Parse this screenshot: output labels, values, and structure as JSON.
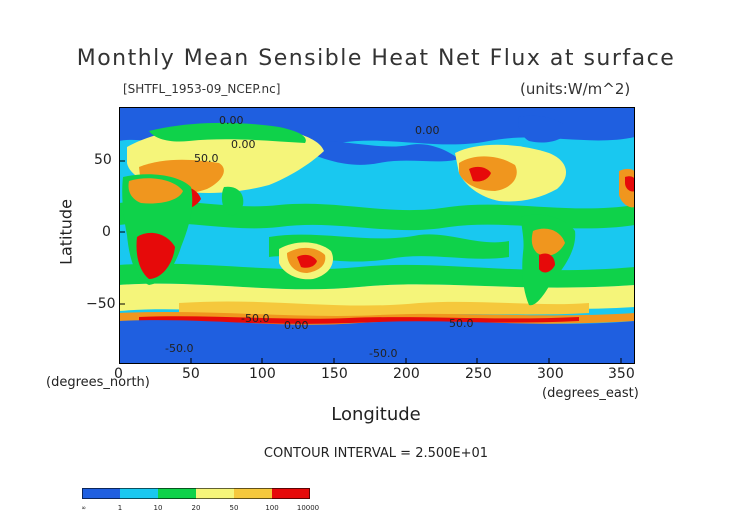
{
  "title": "Monthly Mean Sensible Heat Net Flux at surface",
  "file_label": "[SHTFL_1953-09_NCEP.nc]",
  "units_label": "(units:W/m^2)",
  "y_axis": {
    "label": "Latitude",
    "unit": "(degrees_north)",
    "ticks": [
      "50",
      "0",
      "−50"
    ]
  },
  "x_axis": {
    "label": "Longitude",
    "unit": "(degrees_east)",
    "ticks": [
      "0",
      "50",
      "100",
      "150",
      "200",
      "250",
      "300",
      "350"
    ]
  },
  "contour_interval": "CONTOUR INTERVAL = 2.500E+01",
  "contour_labels": [
    "0.00",
    "0.00",
    "50.0",
    "0.00",
    "-50.0",
    "0.00",
    "50.0",
    "-50.0",
    "-50.0"
  ],
  "legend": {
    "labels": [
      "-∞",
      "1",
      "10",
      "20",
      "50",
      "100",
      "10000"
    ],
    "colors": [
      "#1f5fe0",
      "#19c8f0",
      "#0fd24a",
      "#f5f57a",
      "#f5c83c",
      "#f0961e",
      "#e60a0a"
    ]
  },
  "colors": {
    "ocean": "#19c8f0",
    "cold": "#1f5fe0",
    "green": "#0fd24a",
    "yellow": "#f5f57a",
    "gold": "#f5c83c",
    "orange": "#f0961e",
    "red": "#e60a0a"
  }
}
